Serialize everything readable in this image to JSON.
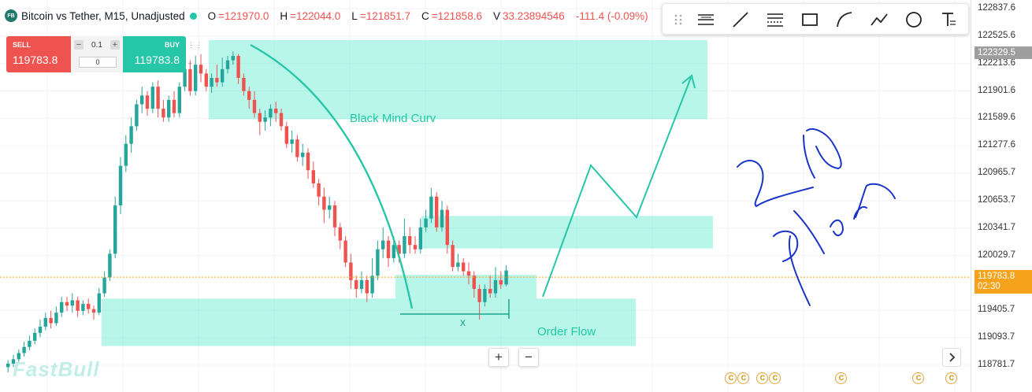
{
  "header": {
    "logo_text": "FB",
    "title": "Bitcoin vs Tether, M15, Unadjusted",
    "open_label": "O",
    "open": "=121970.0",
    "high_label": "H",
    "high": "=122044.0",
    "low_label": "L",
    "low": "=121851.7",
    "close_label": "C",
    "close": "=121858.6",
    "volume_label": "V",
    "volume": "33.23894546",
    "change": "-111.4 (-0.09%)"
  },
  "trade": {
    "sell_label": "SELL",
    "sell_price": "119783.8",
    "buy_label": "BUY",
    "buy_price": "119783.8",
    "qty": "0.1",
    "spread": "0",
    "minus": "−",
    "plus": "+"
  },
  "axis": {
    "ticks": [
      "122837.6",
      "122525.6",
      "122213.6",
      "121901.6",
      "121589.6",
      "121277.6",
      "120965.7",
      "120653.7",
      "120341.7",
      "120029.7",
      "119405.7",
      "119093.7",
      "118781.7"
    ],
    "high_tag": "122329.5",
    "current_price": "119783.8",
    "countdown": "02:30"
  },
  "annotations": {
    "curve_label": "Black Mind Curv",
    "order_flow_label": "Order Flow",
    "x_label": "x",
    "handwriting": "2 Plan"
  },
  "controls": {
    "zoom_in": "+",
    "zoom_out": "−"
  },
  "watermark": "FastBull",
  "colors": {
    "up": "#26a69a",
    "down": "#ef5350",
    "zone": "#26e3bd",
    "curve": "#26c6a8",
    "current_price": "#f7a21b",
    "ink": "#1a34c8"
  },
  "chart_data": {
    "type": "candlestick",
    "symbol": "Bitcoin vs Tether",
    "timeframe": "M15",
    "ylim": [
      118700,
      123000
    ],
    "current_price": 119783.8,
    "candles": [
      [
        118760,
        118800,
        118700,
        118840
      ],
      [
        118800,
        118850,
        118760,
        118900
      ],
      [
        118850,
        118920,
        118820,
        118960
      ],
      [
        118920,
        118990,
        118880,
        119050
      ],
      [
        118990,
        119060,
        118950,
        119120
      ],
      [
        119060,
        119150,
        119020,
        119200
      ],
      [
        119150,
        119220,
        119100,
        119300
      ],
      [
        119220,
        119320,
        119180,
        119380
      ],
      [
        119320,
        119260,
        119200,
        119400
      ],
      [
        119260,
        119380,
        119230,
        119450
      ],
      [
        119380,
        119500,
        119330,
        119560
      ],
      [
        119500,
        119460,
        119400,
        119560
      ],
      [
        119460,
        119520,
        119380,
        119600
      ],
      [
        119520,
        119400,
        119330,
        119560
      ],
      [
        119400,
        119480,
        119350,
        119520
      ],
      [
        119480,
        119420,
        119370,
        119540
      ],
      [
        119420,
        119380,
        119300,
        119460
      ],
      [
        119380,
        119600,
        119350,
        119660
      ],
      [
        119600,
        119780,
        119560,
        119850
      ],
      [
        119780,
        120050,
        119740,
        120100
      ],
      [
        120050,
        120600,
        120000,
        120700
      ],
      [
        120600,
        121050,
        120500,
        121150
      ],
      [
        121050,
        121300,
        120980,
        121400
      ],
      [
        121300,
        121500,
        121200,
        121600
      ],
      [
        121500,
        121750,
        121450,
        121800
      ],
      [
        121750,
        121850,
        121650,
        121950
      ],
      [
        121850,
        121700,
        121620,
        121900
      ],
      [
        121700,
        121950,
        121650,
        122000
      ],
      [
        121950,
        121700,
        121600,
        122020
      ],
      [
        121700,
        121600,
        121550,
        121800
      ],
      [
        121600,
        121800,
        121550,
        121850
      ],
      [
        121800,
        121650,
        121600,
        121900
      ],
      [
        121650,
        121950,
        121600,
        122000
      ],
      [
        121950,
        122150,
        121900,
        122200
      ],
      [
        122150,
        121900,
        121850,
        122250
      ],
      [
        121900,
        122200,
        121850,
        122300
      ],
      [
        122200,
        122100,
        122000,
        122320
      ],
      [
        122100,
        121950,
        121900,
        122150
      ],
      [
        121950,
        122050,
        121880,
        122100
      ],
      [
        122050,
        122000,
        121950,
        122200
      ],
      [
        122000,
        122150,
        121950,
        122280
      ],
      [
        122150,
        122250,
        122100,
        122300
      ],
      [
        122250,
        122300,
        122200,
        122350
      ],
      [
        122300,
        122050,
        121980,
        122320
      ],
      [
        122050,
        121900,
        121850,
        122100
      ],
      [
        121900,
        121800,
        121700,
        121950
      ],
      [
        121800,
        121650,
        121600,
        121900
      ],
      [
        121650,
        121550,
        121400,
        121700
      ],
      [
        121550,
        121600,
        121450,
        121680
      ],
      [
        121600,
        121700,
        121500,
        121750
      ],
      [
        121700,
        121650,
        121550,
        121780
      ],
      [
        121650,
        121500,
        121450,
        121700
      ],
      [
        121500,
        121300,
        121250,
        121550
      ],
      [
        121300,
        121350,
        121200,
        121450
      ],
      [
        121350,
        121150,
        121100,
        121400
      ],
      [
        121150,
        121200,
        121050,
        121300
      ],
      [
        121200,
        121000,
        120900,
        121250
      ],
      [
        121000,
        120850,
        120800,
        121100
      ],
      [
        120850,
        120700,
        120600,
        120900
      ],
      [
        120700,
        120550,
        120400,
        120800
      ],
      [
        120550,
        120600,
        120450,
        120700
      ],
      [
        120600,
        120350,
        120250,
        120650
      ],
      [
        120350,
        120200,
        120100,
        120400
      ],
      [
        120200,
        119950,
        119900,
        120250
      ],
      [
        119950,
        119750,
        119650,
        120050
      ],
      [
        119750,
        119650,
        119550,
        119800
      ],
      [
        119650,
        119750,
        119600,
        119850
      ],
      [
        119750,
        119600,
        119500,
        119800
      ],
      [
        119600,
        119800,
        119550,
        120000
      ],
      [
        119800,
        120100,
        119750,
        120200
      ],
      [
        120100,
        120200,
        120000,
        120350
      ],
      [
        120200,
        120000,
        119900,
        120250
      ],
      [
        120000,
        120150,
        119950,
        120250
      ],
      [
        120150,
        120050,
        119950,
        120200
      ],
      [
        120050,
        120250,
        120000,
        120450
      ],
      [
        120250,
        120150,
        120050,
        120350
      ],
      [
        120150,
        120100,
        120050,
        120250
      ],
      [
        120100,
        120350,
        120050,
        120450
      ],
      [
        120350,
        120450,
        120300,
        120550
      ],
      [
        120450,
        120700,
        120400,
        120800
      ],
      [
        120700,
        120350,
        120300,
        120750
      ],
      [
        120350,
        120550,
        120300,
        120650
      ],
      [
        120550,
        120150,
        120050,
        120600
      ],
      [
        120150,
        119900,
        119850,
        120200
      ],
      [
        119900,
        119950,
        119850,
        120050
      ],
      [
        119950,
        119850,
        119800,
        120000
      ],
      [
        119850,
        119800,
        119700,
        119950
      ],
      [
        119800,
        119650,
        119550,
        119850
      ],
      [
        119650,
        119500,
        119300,
        119700
      ],
      [
        119500,
        119650,
        119450,
        119700
      ],
      [
        119650,
        119600,
        119550,
        119800
      ],
      [
        119600,
        119750,
        119550,
        119900
      ],
      [
        119750,
        119700,
        119650,
        119850
      ],
      [
        119700,
        119860,
        119680,
        119920
      ]
    ],
    "zones": [
      {
        "from_index": 8,
        "to": "right",
        "top": 122480,
        "bottom": 121580
      },
      {
        "from_index": 82,
        "to": "right2",
        "top": 120480,
        "bottom": 120110
      },
      {
        "from_index": 76,
        "to": "mid",
        "top": 119810,
        "bottom": 119540
      },
      {
        "from_index": 4,
        "to": "mid2",
        "top": 119540,
        "bottom": 119000
      }
    ]
  }
}
